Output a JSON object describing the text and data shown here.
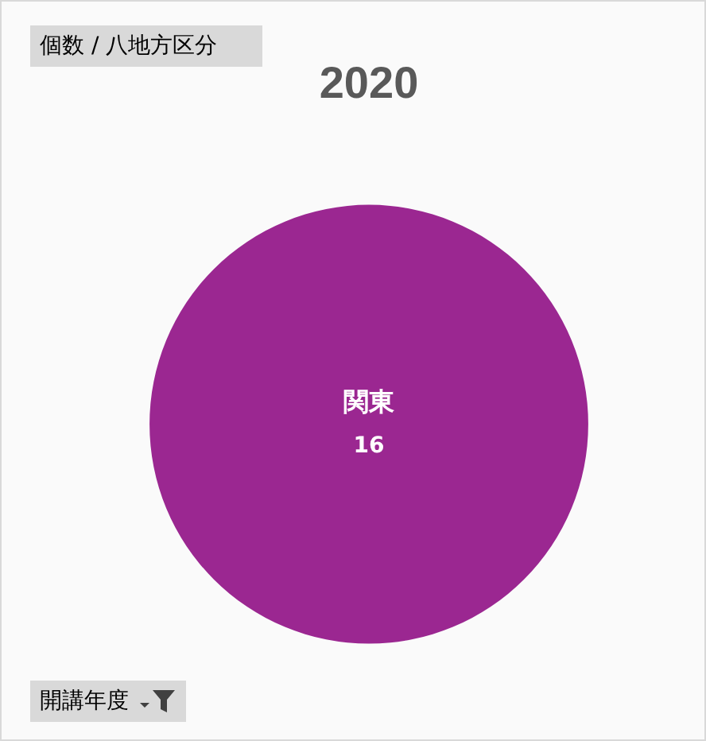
{
  "chart_data": {
    "type": "pie",
    "title": "2020",
    "categories": [
      "関東"
    ],
    "values": [
      16
    ],
    "colors": [
      "#9b2791"
    ],
    "data_labels": true,
    "annotations": [
      "個数 / 八地方区分",
      "開講年度"
    ]
  }
}
